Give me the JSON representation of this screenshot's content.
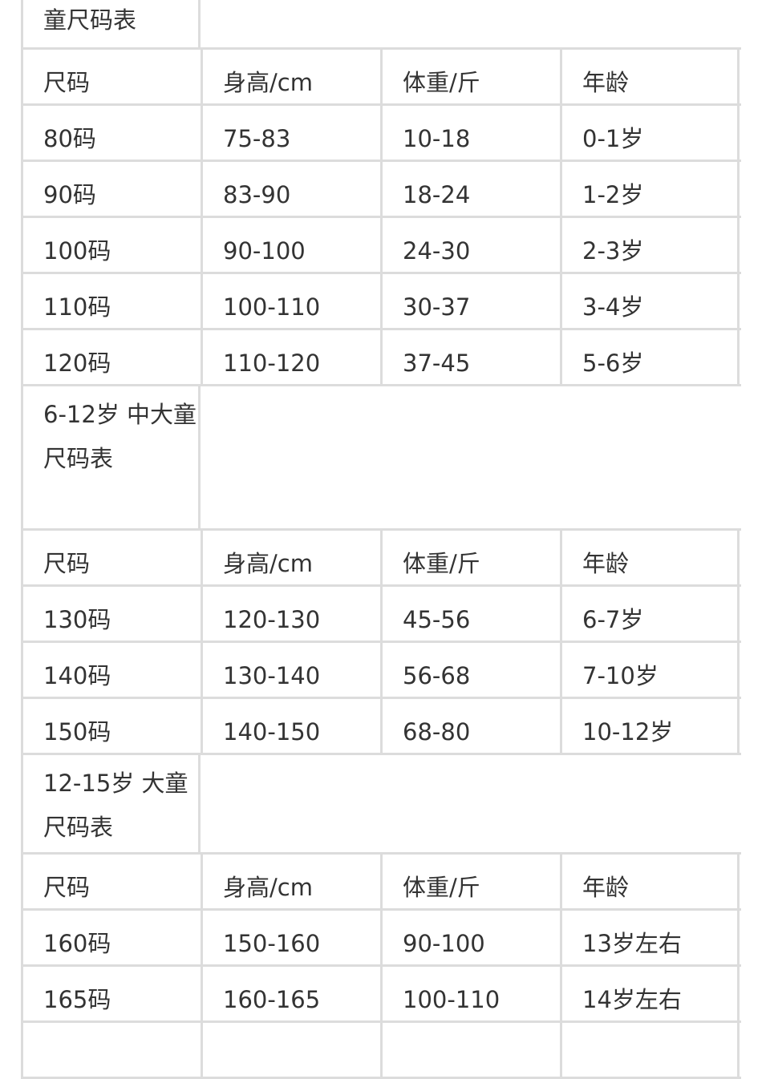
{
  "sections": [
    {
      "title": "童尺码表",
      "headers": [
        "尺码",
        "身高/cm",
        "体重/斤",
        "年龄"
      ],
      "rows": [
        [
          "80码",
          "75-83",
          "10-18",
          "0-1岁"
        ],
        [
          "90码",
          "83-90",
          "18-24",
          "1-2岁"
        ],
        [
          "100码",
          "90-100",
          "24-30",
          "2-3岁"
        ],
        [
          "110码",
          "100-110",
          "30-37",
          "3-4岁"
        ],
        [
          "120码",
          "110-120",
          "37-45",
          "5-6岁"
        ]
      ]
    },
    {
      "title": "6-12岁 中大童尺码表",
      "headers": [
        "尺码",
        "身高/cm",
        "体重/斤",
        "年龄"
      ],
      "rows": [
        [
          "130码",
          "120-130",
          "45-56",
          "6-7岁"
        ],
        [
          "140码",
          "130-140",
          "56-68",
          "7-10岁"
        ],
        [
          "150码",
          "140-150",
          "68-80",
          "10-12岁"
        ]
      ]
    },
    {
      "title": "12-15岁 大童尺码表",
      "headers": [
        "尺码",
        "身高/cm",
        "体重/斤",
        "年龄"
      ],
      "rows": [
        [
          "160码",
          "150-160",
          "90-100",
          "13岁左右"
        ],
        [
          "165码",
          "160-165",
          "100-110",
          "14岁左右"
        ],
        [
          "",
          "",
          "",
          ""
        ]
      ]
    }
  ]
}
